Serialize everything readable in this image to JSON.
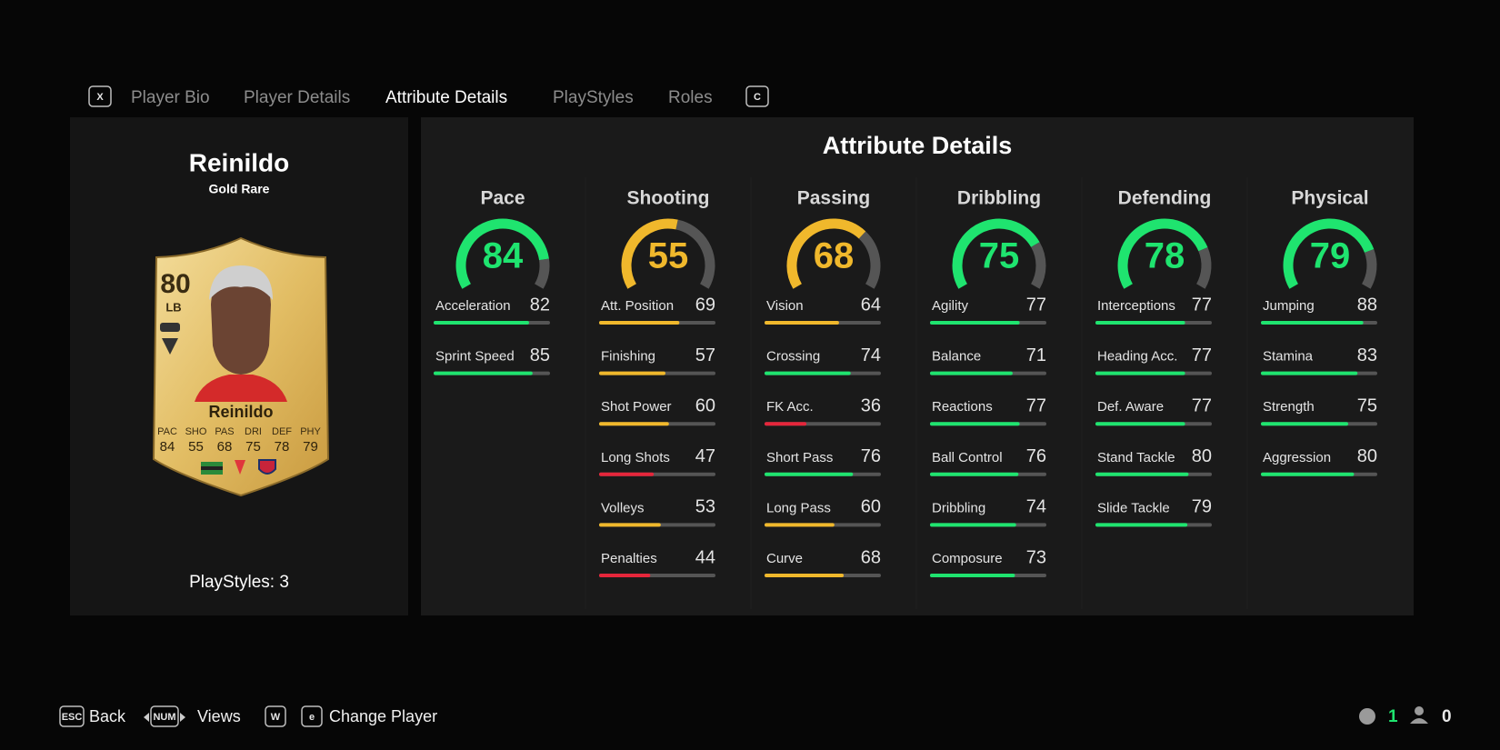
{
  "tabs": {
    "prev_key": "X",
    "next_key": "C",
    "items": [
      {
        "label": "Player Bio"
      },
      {
        "label": "Player Details"
      },
      {
        "label": "Attribute Details",
        "selected": true
      },
      {
        "label": "PlayStyles"
      },
      {
        "label": "Roles"
      }
    ]
  },
  "player": {
    "name": "Reinildo",
    "version": "Gold Rare",
    "playstyles": "PlayStyles: 3",
    "card": {
      "rating": 80,
      "position": "LB",
      "name": "Reinildo",
      "stats": [
        {
          "label": "PAC",
          "value": 84
        },
        {
          "label": "SHO",
          "value": 55
        },
        {
          "label": "PAS",
          "value": 68
        },
        {
          "label": "DRI",
          "value": 75
        },
        {
          "label": "DEF",
          "value": 78
        },
        {
          "label": "PHY",
          "value": 79
        }
      ]
    }
  },
  "panel": {
    "title": "Attribute Details",
    "categories": [
      {
        "name": "Pace",
        "overall": 84,
        "attributes": [
          {
            "name": "Acceleration",
            "value": 82
          },
          {
            "name": "Sprint Speed",
            "value": 85
          }
        ]
      },
      {
        "name": "Shooting",
        "overall": 55,
        "attributes": [
          {
            "name": "Att. Position",
            "value": 69
          },
          {
            "name": "Finishing",
            "value": 57
          },
          {
            "name": "Shot Power",
            "value": 60
          },
          {
            "name": "Long Shots",
            "value": 47
          },
          {
            "name": "Volleys",
            "value": 53
          },
          {
            "name": "Penalties",
            "value": 44
          }
        ]
      },
      {
        "name": "Passing",
        "overall": 68,
        "attributes": [
          {
            "name": "Vision",
            "value": 64
          },
          {
            "name": "Crossing",
            "value": 74
          },
          {
            "name": "FK Acc.",
            "value": 36
          },
          {
            "name": "Short Pass",
            "value": 76
          },
          {
            "name": "Long Pass",
            "value": 60
          },
          {
            "name": "Curve",
            "value": 68
          }
        ]
      },
      {
        "name": "Dribbling",
        "overall": 75,
        "attributes": [
          {
            "name": "Agility",
            "value": 77
          },
          {
            "name": "Balance",
            "value": 71
          },
          {
            "name": "Reactions",
            "value": 77
          },
          {
            "name": "Ball Control",
            "value": 76
          },
          {
            "name": "Dribbling",
            "value": 74
          },
          {
            "name": "Composure",
            "value": 73
          }
        ]
      },
      {
        "name": "Defending",
        "overall": 78,
        "attributes": [
          {
            "name": "Interceptions",
            "value": 77
          },
          {
            "name": "Heading Acc.",
            "value": 77
          },
          {
            "name": "Def. Aware",
            "value": 77
          },
          {
            "name": "Stand Tackle",
            "value": 80
          },
          {
            "name": "Slide Tackle",
            "value": 79
          }
        ]
      },
      {
        "name": "Physical",
        "overall": 79,
        "attributes": [
          {
            "name": "Jumping",
            "value": 88
          },
          {
            "name": "Stamina",
            "value": 83
          },
          {
            "name": "Strength",
            "value": 75
          },
          {
            "name": "Aggression",
            "value": 80
          }
        ]
      }
    ]
  },
  "footer": {
    "hints": [
      {
        "key": "ESC",
        "label": "Back"
      },
      {
        "key": "NUM",
        "label": "Views"
      },
      {
        "key": "W"
      },
      {
        "key": "e",
        "label": "Change Player"
      }
    ],
    "status": [
      1,
      0
    ]
  }
}
